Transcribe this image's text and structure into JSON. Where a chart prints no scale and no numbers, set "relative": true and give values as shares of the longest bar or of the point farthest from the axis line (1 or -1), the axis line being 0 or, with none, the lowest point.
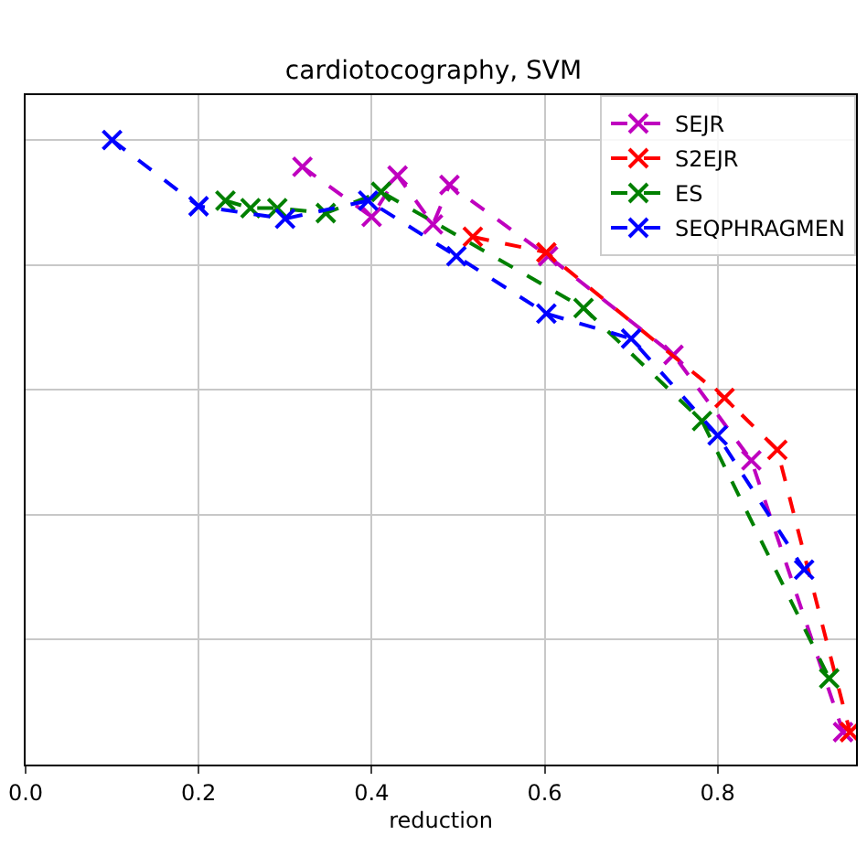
{
  "chart_data": {
    "type": "line",
    "title": "cardiotocography, SVM",
    "xlabel": "reduction",
    "relative": true,
    "xlim": [
      0,
      0.96
    ],
    "xticks": [
      {
        "value": 0,
        "label": "0.0"
      },
      0.2,
      0.4,
      0.6,
      0.8
    ],
    "grid": true,
    "legend": "top right",
    "marker": "cross",
    "line_style": "dashed",
    "series": [
      {
        "name": "SEJR",
        "color": "#bf00bf",
        "x": [
          0.32,
          0.4,
          0.43,
          0.471,
          0.49,
          0.604,
          0.749,
          0.839,
          0.945
        ],
        "values": [
          0.957,
          0.877,
          0.943,
          0.865,
          0.928,
          0.814,
          0.656,
          0.487,
          0.052
        ]
      },
      {
        "name": "S2EJR",
        "color": "#ff0000",
        "x": [
          0.517,
          0.602,
          0.808,
          0.869,
          0.953
        ],
        "values": [
          0.845,
          0.82,
          0.587,
          0.504,
          0.052
        ]
      },
      {
        "name": "ES",
        "color": "#008000",
        "x": [
          0.231,
          0.26,
          0.291,
          0.347,
          0.411,
          0.645,
          0.782,
          0.929
        ],
        "values": [
          0.903,
          0.891,
          0.891,
          0.883,
          0.917,
          0.731,
          0.55,
          0.138
        ]
      },
      {
        "name": "SEQPHRAGMEN",
        "color": "#0000ff",
        "x": [
          0.1,
          0.2,
          0.3,
          0.396,
          0.498,
          0.602,
          0.7,
          0.8,
          0.9
        ],
        "values": [
          1,
          0.894,
          0.874,
          0.903,
          0.814,
          0.722,
          0.682,
          0.527,
          0.312
        ]
      }
    ]
  }
}
